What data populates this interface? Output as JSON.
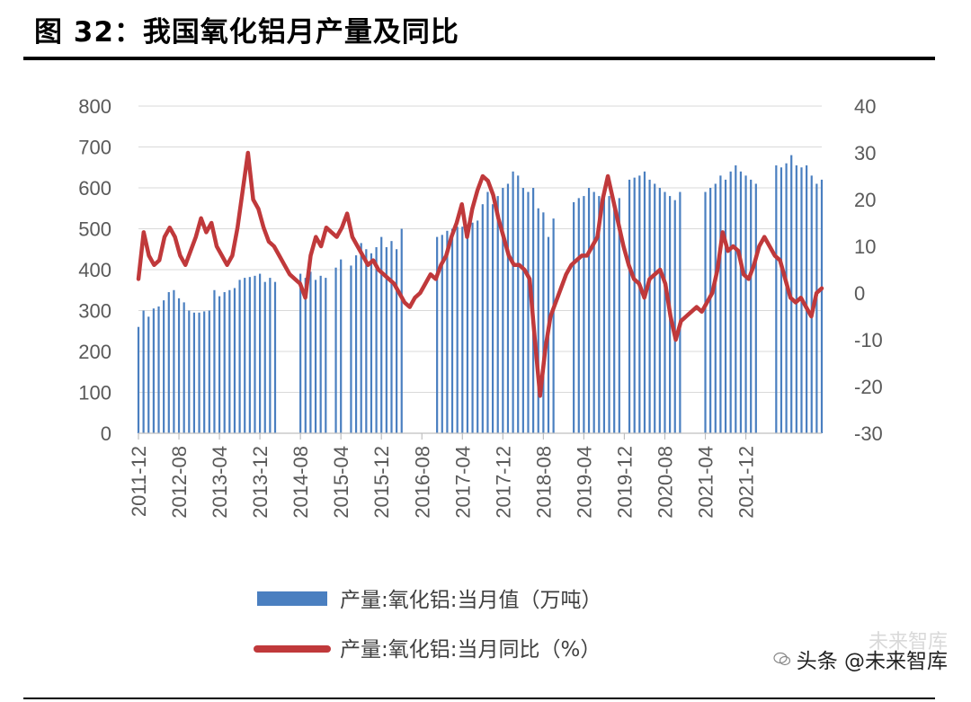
{
  "header": {
    "title": "图 32：我国氧化铝月产量及同比"
  },
  "colors": {
    "bar": "#4a7fc0",
    "line": "#c0393b",
    "grid": "#d9d9d9",
    "axis_text": "#595959",
    "rule": "#000000"
  },
  "watermark": {
    "text": "头条 @未来智库",
    "ghost": "未来智库"
  },
  "chart_data": {
    "type": "bar+line",
    "title": "",
    "legend_position": "bottom",
    "x_tick_labels": [
      "2011-12",
      "2012-08",
      "2013-04",
      "2013-12",
      "2014-08",
      "2015-04",
      "2015-12",
      "2016-08",
      "2017-04",
      "2017-12",
      "2018-08",
      "2019-04",
      "2019-12",
      "2020-08",
      "2021-04",
      "2021-12"
    ],
    "y_left": {
      "ticks": [
        "800",
        "700",
        "600",
        "500",
        "400",
        "300",
        "200",
        "100",
        "0"
      ],
      "range": [
        0,
        800
      ]
    },
    "y_right": {
      "ticks": [
        "40",
        "30",
        "20",
        "10",
        "0",
        "-10",
        "-20",
        "-30"
      ],
      "range": [
        -30,
        40
      ]
    },
    "series": [
      {
        "name": "产量:氧化铝:当月值（万吨）",
        "type": "bar",
        "axis": "left",
        "values": [
          260,
          300,
          285,
          305,
          310,
          325,
          345,
          350,
          330,
          320,
          300,
          295,
          295,
          298,
          300,
          350,
          335,
          345,
          350,
          355,
          375,
          380,
          382,
          385,
          390,
          370,
          380,
          370,
          0,
          0,
          0,
          0,
          390,
          380,
          395,
          375,
          385,
          380,
          0,
          405,
          425,
          0,
          410,
          435,
          465,
          450,
          440,
          455,
          480,
          455,
          470,
          450,
          500,
          0,
          0,
          0,
          0,
          0,
          0,
          480,
          485,
          495,
          500,
          505,
          505,
          510,
          515,
          520,
          560,
          590,
          560,
          580,
          600,
          610,
          640,
          630,
          600,
          590,
          600,
          550,
          540,
          480,
          525,
          0,
          0,
          0,
          565,
          575,
          580,
          600,
          590,
          580,
          585,
          580,
          560,
          575,
          0,
          620,
          625,
          630,
          640,
          620,
          610,
          600,
          590,
          580,
          570,
          590,
          0,
          0,
          0,
          0,
          590,
          600,
          610,
          630,
          620,
          640,
          655,
          640,
          630,
          620,
          610,
          0,
          0,
          0,
          655,
          650,
          660,
          680,
          655,
          650,
          655,
          630,
          610,
          620
        ]
      },
      {
        "name": "产量:氧化铝:当月同比（%）",
        "type": "line",
        "axis": "right",
        "values": [
          3,
          13,
          8,
          6,
          7,
          12,
          14,
          12,
          8,
          6,
          9,
          12,
          16,
          13,
          15,
          10,
          8,
          6,
          8,
          14,
          22,
          30,
          20,
          18,
          14,
          11,
          10,
          8,
          6,
          4,
          3,
          2,
          -1,
          8,
          12,
          10,
          14,
          13,
          12,
          14,
          17,
          12,
          10,
          8,
          6,
          7,
          5,
          4,
          3,
          2,
          0,
          -2,
          -3,
          -1,
          0,
          2,
          4,
          3,
          6,
          8,
          12,
          15,
          19,
          12,
          18,
          22,
          25,
          24,
          21,
          16,
          12,
          8,
          6,
          6,
          5,
          3,
          -10,
          -22,
          -12,
          -5,
          -2,
          1,
          4,
          6,
          7,
          8,
          8,
          10,
          12,
          20,
          25,
          20,
          15,
          10,
          6,
          3,
          2,
          -1,
          3,
          4,
          5,
          2,
          -5,
          -10,
          -6,
          -5,
          -4,
          -3,
          -4,
          -2,
          0,
          5,
          13,
          9,
          10,
          9,
          4,
          3,
          6,
          10,
          12,
          10,
          8,
          7,
          3,
          -1,
          -2,
          -1,
          -3,
          -5,
          0,
          1
        ]
      }
    ]
  }
}
